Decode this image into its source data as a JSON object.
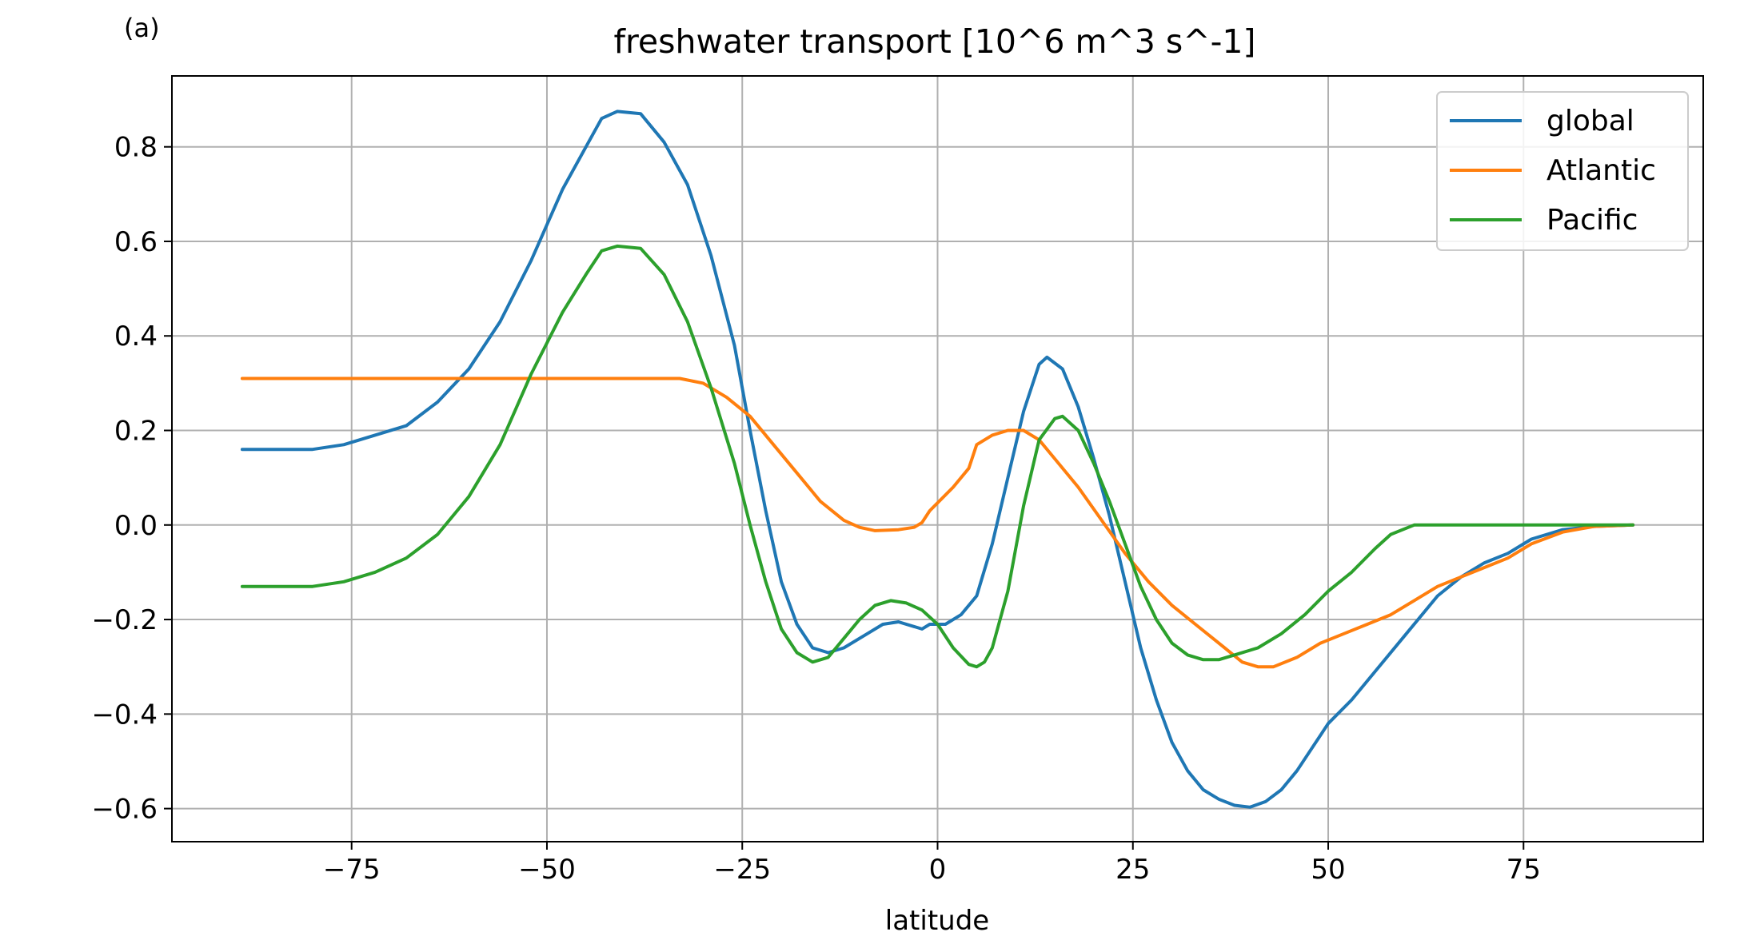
{
  "panel_label": "(a)",
  "chart_data": {
    "type": "line",
    "title": "freshwater transport [10^6 m^3 s^-1]",
    "xlabel": "latitude",
    "ylabel": "",
    "xlim": [
      -98,
      98
    ],
    "ylim": [
      -0.67,
      0.95
    ],
    "xticks": [
      -75,
      -50,
      -25,
      0,
      25,
      50,
      75
    ],
    "xtick_labels": [
      "−75",
      "−50",
      "−25",
      "0",
      "25",
      "50",
      "75"
    ],
    "yticks": [
      -0.6,
      -0.4,
      -0.2,
      0.0,
      0.2,
      0.4,
      0.6,
      0.8
    ],
    "ytick_labels": [
      "−0.6",
      "−0.4",
      "−0.2",
      "0.0",
      "0.2",
      "0.4",
      "0.6",
      "0.8"
    ],
    "grid": true,
    "legend_position": "top-right",
    "series": [
      {
        "name": "global",
        "color": "#1f77b4",
        "points": [
          [
            -89,
            0.16
          ],
          [
            -80,
            0.16
          ],
          [
            -76,
            0.17
          ],
          [
            -72,
            0.19
          ],
          [
            -68,
            0.21
          ],
          [
            -64,
            0.26
          ],
          [
            -60,
            0.33
          ],
          [
            -56,
            0.43
          ],
          [
            -52,
            0.56
          ],
          [
            -48,
            0.71
          ],
          [
            -45,
            0.8
          ],
          [
            -43,
            0.86
          ],
          [
            -41,
            0.875
          ],
          [
            -38,
            0.87
          ],
          [
            -35,
            0.81
          ],
          [
            -32,
            0.72
          ],
          [
            -29,
            0.57
          ],
          [
            -26,
            0.38
          ],
          [
            -24,
            0.2
          ],
          [
            -22,
            0.03
          ],
          [
            -20,
            -0.12
          ],
          [
            -18,
            -0.21
          ],
          [
            -16,
            -0.26
          ],
          [
            -14,
            -0.27
          ],
          [
            -12,
            -0.26
          ],
          [
            -9,
            -0.23
          ],
          [
            -7,
            -0.21
          ],
          [
            -5,
            -0.205
          ],
          [
            -3,
            -0.215
          ],
          [
            -2,
            -0.22
          ],
          [
            -1,
            -0.21
          ],
          [
            1,
            -0.21
          ],
          [
            3,
            -0.19
          ],
          [
            5,
            -0.15
          ],
          [
            7,
            -0.04
          ],
          [
            9,
            0.1
          ],
          [
            11,
            0.24
          ],
          [
            13,
            0.34
          ],
          [
            14,
            0.355
          ],
          [
            16,
            0.33
          ],
          [
            18,
            0.25
          ],
          [
            20,
            0.14
          ],
          [
            22,
            0.02
          ],
          [
            24,
            -0.12
          ],
          [
            26,
            -0.26
          ],
          [
            28,
            -0.37
          ],
          [
            30,
            -0.46
          ],
          [
            32,
            -0.52
          ],
          [
            34,
            -0.56
          ],
          [
            36,
            -0.58
          ],
          [
            38,
            -0.593
          ],
          [
            40,
            -0.597
          ],
          [
            42,
            -0.585
          ],
          [
            44,
            -0.56
          ],
          [
            46,
            -0.52
          ],
          [
            48,
            -0.47
          ],
          [
            50,
            -0.42
          ],
          [
            53,
            -0.37
          ],
          [
            56,
            -0.31
          ],
          [
            60,
            -0.23
          ],
          [
            64,
            -0.15
          ],
          [
            67,
            -0.11
          ],
          [
            70,
            -0.08
          ],
          [
            73,
            -0.06
          ],
          [
            76,
            -0.03
          ],
          [
            80,
            -0.01
          ],
          [
            84,
            -0.003
          ],
          [
            89,
            0.0
          ]
        ]
      },
      {
        "name": "Atlantic",
        "color": "#ff7f0e",
        "points": [
          [
            -89,
            0.31
          ],
          [
            -33,
            0.31
          ],
          [
            -30,
            0.3
          ],
          [
            -27,
            0.27
          ],
          [
            -24,
            0.23
          ],
          [
            -21,
            0.17
          ],
          [
            -18,
            0.11
          ],
          [
            -15,
            0.05
          ],
          [
            -12,
            0.01
          ],
          [
            -10,
            -0.005
          ],
          [
            -8,
            -0.012
          ],
          [
            -5,
            -0.01
          ],
          [
            -3,
            -0.005
          ],
          [
            -2,
            0.005
          ],
          [
            -1,
            0.03
          ],
          [
            2,
            0.08
          ],
          [
            4,
            0.12
          ],
          [
            5,
            0.17
          ],
          [
            7,
            0.19
          ],
          [
            9,
            0.2
          ],
          [
            11,
            0.2
          ],
          [
            13,
            0.18
          ],
          [
            15,
            0.14
          ],
          [
            18,
            0.08
          ],
          [
            21,
            0.01
          ],
          [
            24,
            -0.06
          ],
          [
            27,
            -0.12
          ],
          [
            30,
            -0.17
          ],
          [
            33,
            -0.21
          ],
          [
            36,
            -0.25
          ],
          [
            39,
            -0.29
          ],
          [
            41,
            -0.3
          ],
          [
            43,
            -0.3
          ],
          [
            46,
            -0.28
          ],
          [
            49,
            -0.25
          ],
          [
            52,
            -0.23
          ],
          [
            55,
            -0.21
          ],
          [
            58,
            -0.19
          ],
          [
            61,
            -0.16
          ],
          [
            64,
            -0.13
          ],
          [
            67,
            -0.11
          ],
          [
            70,
            -0.09
          ],
          [
            73,
            -0.07
          ],
          [
            76,
            -0.04
          ],
          [
            80,
            -0.015
          ],
          [
            84,
            -0.003
          ],
          [
            89,
            0.0
          ]
        ]
      },
      {
        "name": "Pacific",
        "color": "#2ca02c",
        "points": [
          [
            -89,
            -0.13
          ],
          [
            -80,
            -0.13
          ],
          [
            -76,
            -0.12
          ],
          [
            -72,
            -0.1
          ],
          [
            -68,
            -0.07
          ],
          [
            -64,
            -0.02
          ],
          [
            -60,
            0.06
          ],
          [
            -56,
            0.17
          ],
          [
            -52,
            0.32
          ],
          [
            -48,
            0.45
          ],
          [
            -45,
            0.53
          ],
          [
            -43,
            0.58
          ],
          [
            -41,
            0.59
          ],
          [
            -38,
            0.585
          ],
          [
            -35,
            0.53
          ],
          [
            -32,
            0.43
          ],
          [
            -29,
            0.29
          ],
          [
            -26,
            0.13
          ],
          [
            -24,
            0.0
          ],
          [
            -22,
            -0.12
          ],
          [
            -20,
            -0.22
          ],
          [
            -18,
            -0.27
          ],
          [
            -16,
            -0.29
          ],
          [
            -14,
            -0.28
          ],
          [
            -12,
            -0.24
          ],
          [
            -10,
            -0.2
          ],
          [
            -8,
            -0.17
          ],
          [
            -6,
            -0.16
          ],
          [
            -4,
            -0.165
          ],
          [
            -2,
            -0.18
          ],
          [
            0,
            -0.21
          ],
          [
            2,
            -0.26
          ],
          [
            4,
            -0.295
          ],
          [
            5,
            -0.3
          ],
          [
            6,
            -0.29
          ],
          [
            7,
            -0.26
          ],
          [
            9,
            -0.14
          ],
          [
            11,
            0.04
          ],
          [
            13,
            0.18
          ],
          [
            15,
            0.225
          ],
          [
            16,
            0.23
          ],
          [
            18,
            0.2
          ],
          [
            20,
            0.13
          ],
          [
            22,
            0.05
          ],
          [
            24,
            -0.04
          ],
          [
            26,
            -0.13
          ],
          [
            28,
            -0.2
          ],
          [
            30,
            -0.25
          ],
          [
            32,
            -0.275
          ],
          [
            34,
            -0.285
          ],
          [
            36,
            -0.285
          ],
          [
            38,
            -0.275
          ],
          [
            41,
            -0.26
          ],
          [
            44,
            -0.23
          ],
          [
            47,
            -0.19
          ],
          [
            50,
            -0.14
          ],
          [
            53,
            -0.1
          ],
          [
            56,
            -0.05
          ],
          [
            58,
            -0.02
          ],
          [
            61,
            0.0
          ],
          [
            64,
            0.0
          ],
          [
            89,
            0.0
          ]
        ]
      }
    ]
  }
}
